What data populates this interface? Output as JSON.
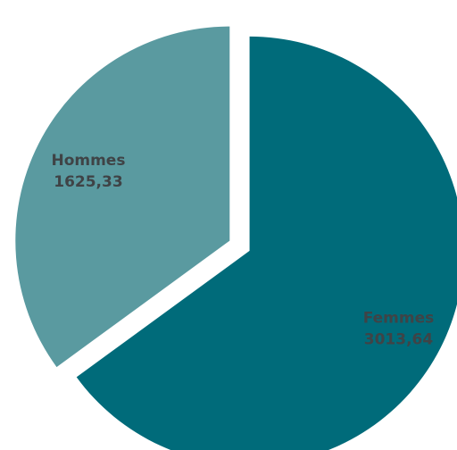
{
  "chart_data": {
    "type": "pie",
    "title": "",
    "series": [
      {
        "labels": [
          "Femmes",
          "Hommes"
        ],
        "values": [
          3013.64,
          1625.33
        ],
        "value_labels": [
          "3013,64",
          "1625,33"
        ],
        "colors": [
          "#006B7A",
          "#5A9AA0"
        ]
      }
    ],
    "start_angle_deg": 0,
    "direction": "clockwise",
    "exploded": true,
    "label_color": "#3F4346"
  }
}
